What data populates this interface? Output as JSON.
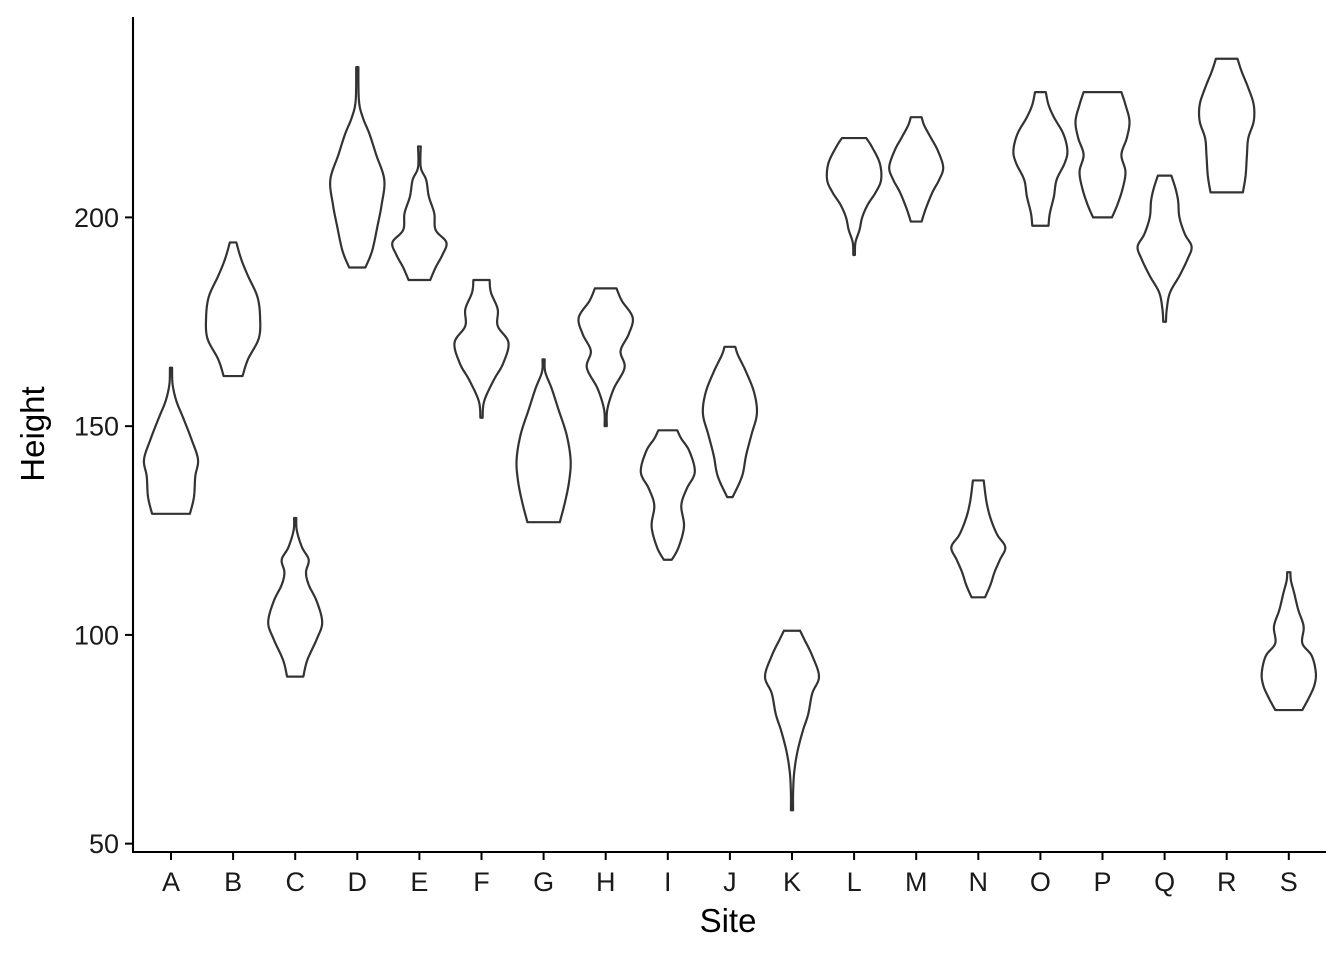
{
  "chart_data": {
    "type": "violin",
    "title": "",
    "xlabel": "Site",
    "ylabel": "Height",
    "categories": [
      "A",
      "B",
      "C",
      "D",
      "E",
      "F",
      "G",
      "H",
      "I",
      "J",
      "K",
      "L",
      "M",
      "N",
      "O",
      "P",
      "Q",
      "R",
      "S"
    ],
    "y_ticks": [
      50,
      100,
      150,
      200
    ],
    "ylim": [
      48,
      248
    ],
    "grid": false,
    "legend": "none",
    "stroke_color": "#333333",
    "fill_color": "#ffffff",
    "violins": [
      {
        "site": "A",
        "min": 129,
        "max": 164,
        "profile": [
          [
            129,
            0.7
          ],
          [
            133,
            0.85
          ],
          [
            138,
            0.9
          ],
          [
            142,
            1.0
          ],
          [
            147,
            0.75
          ],
          [
            152,
            0.45
          ],
          [
            156,
            0.2
          ],
          [
            160,
            0.06
          ],
          [
            164,
            0.04
          ]
        ]
      },
      {
        "site": "B",
        "min": 162,
        "max": 194,
        "profile": [
          [
            162,
            0.35
          ],
          [
            166,
            0.55
          ],
          [
            171,
            0.95
          ],
          [
            176,
            1.0
          ],
          [
            181,
            0.9
          ],
          [
            186,
            0.55
          ],
          [
            190,
            0.3
          ],
          [
            194,
            0.12
          ]
        ]
      },
      {
        "site": "C",
        "min": 90,
        "max": 128,
        "profile": [
          [
            90,
            0.3
          ],
          [
            94,
            0.45
          ],
          [
            99,
            0.8
          ],
          [
            103,
            1.0
          ],
          [
            108,
            0.8
          ],
          [
            112,
            0.5
          ],
          [
            115,
            0.4
          ],
          [
            118,
            0.5
          ],
          [
            121,
            0.25
          ],
          [
            125,
            0.06
          ],
          [
            128,
            0.04
          ]
        ]
      },
      {
        "site": "D",
        "min": 188,
        "max": 236,
        "profile": [
          [
            188,
            0.3
          ],
          [
            192,
            0.55
          ],
          [
            198,
            0.75
          ],
          [
            203,
            0.9
          ],
          [
            209,
            1.0
          ],
          [
            215,
            0.7
          ],
          [
            220,
            0.45
          ],
          [
            224,
            0.2
          ],
          [
            228,
            0.06
          ],
          [
            236,
            0.04
          ]
        ]
      },
      {
        "site": "E",
        "min": 185,
        "max": 217,
        "profile": [
          [
            185,
            0.4
          ],
          [
            188,
            0.6
          ],
          [
            191,
            0.85
          ],
          [
            194,
            1.0
          ],
          [
            197,
            0.6
          ],
          [
            201,
            0.55
          ],
          [
            205,
            0.35
          ],
          [
            209,
            0.25
          ],
          [
            212,
            0.05
          ],
          [
            217,
            0.05
          ]
        ]
      },
      {
        "site": "F",
        "min": 152,
        "max": 185,
        "profile": [
          [
            152,
            0.04
          ],
          [
            156,
            0.1
          ],
          [
            161,
            0.45
          ],
          [
            165,
            0.8
          ],
          [
            170,
            1.0
          ],
          [
            174,
            0.6
          ],
          [
            178,
            0.6
          ],
          [
            182,
            0.35
          ],
          [
            185,
            0.3
          ]
        ]
      },
      {
        "site": "G",
        "min": 127,
        "max": 166,
        "profile": [
          [
            127,
            0.6
          ],
          [
            132,
            0.8
          ],
          [
            137,
            0.95
          ],
          [
            142,
            1.0
          ],
          [
            148,
            0.85
          ],
          [
            154,
            0.55
          ],
          [
            159,
            0.3
          ],
          [
            163,
            0.06
          ],
          [
            166,
            0.04
          ]
        ]
      },
      {
        "site": "H",
        "min": 150,
        "max": 183,
        "profile": [
          [
            150,
            0.04
          ],
          [
            154,
            0.06
          ],
          [
            159,
            0.3
          ],
          [
            164,
            0.7
          ],
          [
            168,
            0.55
          ],
          [
            172,
            0.85
          ],
          [
            176,
            1.0
          ],
          [
            180,
            0.6
          ],
          [
            183,
            0.4
          ]
        ]
      },
      {
        "site": "I",
        "min": 118,
        "max": 149,
        "profile": [
          [
            118,
            0.15
          ],
          [
            121,
            0.4
          ],
          [
            126,
            0.6
          ],
          [
            131,
            0.5
          ],
          [
            135,
            0.7
          ],
          [
            139,
            1.0
          ],
          [
            144,
            0.8
          ],
          [
            147,
            0.5
          ],
          [
            149,
            0.35
          ]
        ]
      },
      {
        "site": "J",
        "min": 133,
        "max": 169,
        "profile": [
          [
            133,
            0.1
          ],
          [
            138,
            0.45
          ],
          [
            143,
            0.6
          ],
          [
            148,
            0.8
          ],
          [
            153,
            1.0
          ],
          [
            158,
            0.9
          ],
          [
            163,
            0.6
          ],
          [
            167,
            0.3
          ],
          [
            169,
            0.2
          ]
        ]
      },
      {
        "site": "K",
        "min": 58,
        "max": 101,
        "profile": [
          [
            58,
            0.04
          ],
          [
            62,
            0.04
          ],
          [
            67,
            0.08
          ],
          [
            72,
            0.2
          ],
          [
            77,
            0.4
          ],
          [
            81,
            0.6
          ],
          [
            86,
            0.75
          ],
          [
            90,
            1.0
          ],
          [
            95,
            0.75
          ],
          [
            99,
            0.45
          ],
          [
            101,
            0.3
          ]
        ]
      },
      {
        "site": "L",
        "min": 191,
        "max": 219,
        "profile": [
          [
            191,
            0.03
          ],
          [
            194,
            0.05
          ],
          [
            197,
            0.2
          ],
          [
            200,
            0.3
          ],
          [
            203,
            0.5
          ],
          [
            206,
            0.8
          ],
          [
            209,
            1.0
          ],
          [
            213,
            0.95
          ],
          [
            217,
            0.65
          ],
          [
            219,
            0.45
          ]
        ]
      },
      {
        "site": "M",
        "min": 199,
        "max": 224,
        "profile": [
          [
            199,
            0.2
          ],
          [
            202,
            0.35
          ],
          [
            206,
            0.6
          ],
          [
            209,
            0.85
          ],
          [
            212,
            1.0
          ],
          [
            216,
            0.8
          ],
          [
            219,
            0.55
          ],
          [
            222,
            0.3
          ],
          [
            224,
            0.2
          ]
        ]
      },
      {
        "site": "N",
        "min": 109,
        "max": 137,
        "profile": [
          [
            109,
            0.25
          ],
          [
            112,
            0.45
          ],
          [
            115,
            0.6
          ],
          [
            118,
            0.8
          ],
          [
            121,
            1.0
          ],
          [
            124,
            0.7
          ],
          [
            128,
            0.45
          ],
          [
            132,
            0.3
          ],
          [
            137,
            0.2
          ]
        ]
      },
      {
        "site": "O",
        "min": 198,
        "max": 230,
        "profile": [
          [
            198,
            0.3
          ],
          [
            201,
            0.35
          ],
          [
            205,
            0.5
          ],
          [
            209,
            0.6
          ],
          [
            213,
            0.9
          ],
          [
            216,
            1.0
          ],
          [
            220,
            0.85
          ],
          [
            224,
            0.5
          ],
          [
            227,
            0.3
          ],
          [
            230,
            0.2
          ]
        ]
      },
      {
        "site": "P",
        "min": 200,
        "max": 230,
        "profile": [
          [
            200,
            0.35
          ],
          [
            203,
            0.55
          ],
          [
            207,
            0.75
          ],
          [
            211,
            0.85
          ],
          [
            215,
            0.7
          ],
          [
            219,
            0.9
          ],
          [
            223,
            1.0
          ],
          [
            227,
            0.85
          ],
          [
            230,
            0.7
          ]
        ]
      },
      {
        "site": "Q",
        "min": 175,
        "max": 210,
        "profile": [
          [
            175,
            0.05
          ],
          [
            178,
            0.08
          ],
          [
            182,
            0.2
          ],
          [
            186,
            0.55
          ],
          [
            190,
            0.85
          ],
          [
            193,
            1.0
          ],
          [
            196,
            0.75
          ],
          [
            200,
            0.55
          ],
          [
            204,
            0.5
          ],
          [
            207,
            0.4
          ],
          [
            210,
            0.25
          ]
        ]
      },
      {
        "site": "R",
        "min": 206,
        "max": 238,
        "profile": [
          [
            206,
            0.6
          ],
          [
            210,
            0.7
          ],
          [
            215,
            0.75
          ],
          [
            219,
            0.8
          ],
          [
            223,
            1.0
          ],
          [
            227,
            1.0
          ],
          [
            231,
            0.8
          ],
          [
            235,
            0.55
          ],
          [
            238,
            0.4
          ]
        ]
      },
      {
        "site": "S",
        "min": 82,
        "max": 115,
        "profile": [
          [
            82,
            0.5
          ],
          [
            85,
            0.75
          ],
          [
            88,
            0.95
          ],
          [
            91,
            1.0
          ],
          [
            95,
            0.85
          ],
          [
            98,
            0.5
          ],
          [
            102,
            0.55
          ],
          [
            106,
            0.35
          ],
          [
            110,
            0.2
          ],
          [
            113,
            0.08
          ],
          [
            115,
            0.06
          ]
        ]
      }
    ]
  }
}
